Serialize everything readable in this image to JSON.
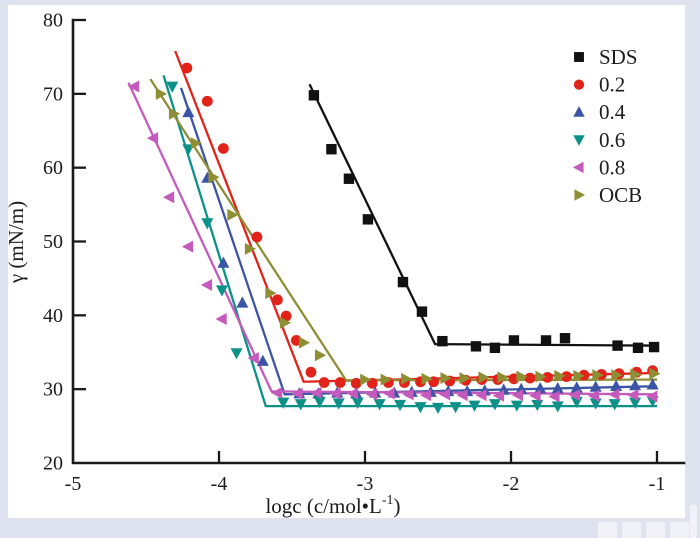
{
  "figure": {
    "frame_color": "#dfe3f0",
    "plot_background": "#ffffff",
    "axis_color": "#1a1a1a",
    "watermark_present": true
  },
  "chart_data": {
    "type": "scatter",
    "title": "",
    "xlabel": {
      "text": "logc (c/mol•L",
      "sup": "-1",
      "suffix": ")"
    },
    "ylabel": "γ (mN/m)",
    "xlim": [
      -5,
      -1
    ],
    "ylim": [
      20,
      80
    ],
    "x_ticks": [
      -5,
      -4,
      -3,
      -2,
      -1
    ],
    "y_ticks": [
      20,
      30,
      40,
      50,
      60,
      70,
      80
    ],
    "grid": false,
    "legend_position": "upper right",
    "series": [
      {
        "name": "SDS",
        "color": "#111111",
        "marker": "square",
        "line": [
          [
            -3.38,
            71.3
          ],
          [
            -2.52,
            36.1
          ],
          [
            -1.0,
            35.9
          ]
        ],
        "points": [
          [
            -3.35,
            69.8
          ],
          [
            -3.23,
            62.5
          ],
          [
            -3.11,
            58.5
          ],
          [
            -2.98,
            53.0
          ],
          [
            -2.74,
            44.5
          ],
          [
            -2.61,
            40.5
          ],
          [
            -2.47,
            36.5
          ],
          [
            -2.24,
            35.8
          ],
          [
            -2.11,
            35.6
          ],
          [
            -1.98,
            36.6
          ],
          [
            -1.76,
            36.6
          ],
          [
            -1.63,
            36.9
          ],
          [
            -1.27,
            35.9
          ],
          [
            -1.13,
            35.6
          ],
          [
            -1.02,
            35.7
          ]
        ]
      },
      {
        "name": "0.2",
        "color": "#e2231a",
        "marker": "circle",
        "line": [
          [
            -4.3,
            75.8
          ],
          [
            -3.42,
            31.0
          ],
          [
            -1.0,
            32.2
          ]
        ],
        "points": [
          [
            -4.22,
            73.5
          ],
          [
            -4.08,
            69.0
          ],
          [
            -3.97,
            62.6
          ],
          [
            -3.74,
            50.6
          ],
          [
            -3.6,
            42.1
          ],
          [
            -3.54,
            39.9
          ],
          [
            -3.47,
            36.6
          ],
          [
            -3.37,
            32.3
          ],
          [
            -3.28,
            30.9
          ],
          [
            -3.17,
            30.9
          ],
          [
            -3.06,
            30.8
          ],
          [
            -2.95,
            30.8
          ],
          [
            -2.84,
            30.9
          ],
          [
            -2.73,
            30.9
          ],
          [
            -2.62,
            31.0
          ],
          [
            -2.53,
            31.0
          ],
          [
            -2.42,
            31.1
          ],
          [
            -2.31,
            31.2
          ],
          [
            -2.2,
            31.3
          ],
          [
            -2.09,
            31.3
          ],
          [
            -1.98,
            31.4
          ],
          [
            -1.87,
            31.5
          ],
          [
            -1.75,
            31.6
          ],
          [
            -1.62,
            31.7
          ],
          [
            -1.5,
            31.9
          ],
          [
            -1.38,
            32.0
          ],
          [
            -1.26,
            32.1
          ],
          [
            -1.14,
            32.3
          ],
          [
            -1.03,
            32.5
          ]
        ]
      },
      {
        "name": "0.4",
        "color": "#3b54a5",
        "marker": "triangle-up",
        "line": [
          [
            -4.26,
            70.8
          ],
          [
            -3.55,
            29.3
          ],
          [
            -1.0,
            30.4
          ]
        ],
        "points": [
          [
            -4.21,
            67.5
          ],
          [
            -4.08,
            58.6
          ],
          [
            -3.97,
            47.1
          ],
          [
            -3.84,
            41.7
          ],
          [
            -3.7,
            33.8
          ],
          [
            -3.45,
            29.4
          ],
          [
            -3.32,
            29.4
          ],
          [
            -3.19,
            29.5
          ],
          [
            -3.06,
            29.4
          ],
          [
            -2.93,
            29.5
          ],
          [
            -2.8,
            29.5
          ],
          [
            -2.68,
            29.6
          ],
          [
            -2.55,
            29.6
          ],
          [
            -2.43,
            29.7
          ],
          [
            -2.3,
            29.7
          ],
          [
            -2.18,
            29.8
          ],
          [
            -2.05,
            29.9
          ],
          [
            -1.93,
            30.0
          ],
          [
            -1.8,
            30.1
          ],
          [
            -1.68,
            30.1
          ],
          [
            -1.55,
            30.2
          ],
          [
            -1.42,
            30.3
          ],
          [
            -1.28,
            30.4
          ],
          [
            -1.15,
            30.5
          ],
          [
            -1.03,
            30.6
          ]
        ]
      },
      {
        "name": "0.6",
        "color": "#0c9189",
        "marker": "triangle-down",
        "line": [
          [
            -4.38,
            72.5
          ],
          [
            -3.68,
            27.7
          ],
          [
            -1.0,
            27.7
          ]
        ],
        "points": [
          [
            -4.32,
            71.0
          ],
          [
            -4.21,
            62.5
          ],
          [
            -4.08,
            52.5
          ],
          [
            -3.98,
            43.4
          ],
          [
            -3.88,
            34.9
          ],
          [
            -3.56,
            28.2
          ],
          [
            -3.44,
            28.0
          ],
          [
            -3.31,
            28.3
          ],
          [
            -3.18,
            28.1
          ],
          [
            -3.05,
            28.2
          ],
          [
            -2.9,
            28.0
          ],
          [
            -2.76,
            27.9
          ],
          [
            -2.62,
            27.6
          ],
          [
            -2.5,
            27.5
          ],
          [
            -2.38,
            27.6
          ],
          [
            -2.25,
            27.8
          ],
          [
            -2.11,
            28.0
          ],
          [
            -1.96,
            27.8
          ],
          [
            -1.82,
            27.9
          ],
          [
            -1.68,
            27.7
          ],
          [
            -1.55,
            28.3
          ],
          [
            -1.42,
            28.1
          ],
          [
            -1.29,
            28.0
          ],
          [
            -1.15,
            28.2
          ],
          [
            -1.03,
            28.4
          ]
        ]
      },
      {
        "name": "0.8",
        "color": "#c45bbc",
        "marker": "triangle-left",
        "line": [
          [
            -4.62,
            71.5
          ],
          [
            -3.64,
            29.7
          ],
          [
            -1.0,
            29.3
          ]
        ],
        "points": [
          [
            -4.58,
            71.0
          ],
          [
            -4.45,
            64.0
          ],
          [
            -4.34,
            56.0
          ],
          [
            -4.21,
            49.3
          ],
          [
            -4.08,
            44.1
          ],
          [
            -3.98,
            39.5
          ],
          [
            -3.76,
            34.2
          ],
          [
            -3.6,
            29.5
          ],
          [
            -3.46,
            29.4
          ],
          [
            -3.33,
            29.5
          ],
          [
            -3.2,
            29.4
          ],
          [
            -3.08,
            29.4
          ],
          [
            -2.95,
            29.3
          ],
          [
            -2.83,
            29.4
          ],
          [
            -2.7,
            29.3
          ],
          [
            -2.58,
            29.2
          ],
          [
            -2.45,
            29.3
          ],
          [
            -2.33,
            29.2
          ],
          [
            -2.2,
            29.2
          ],
          [
            -2.08,
            29.1
          ],
          [
            -1.95,
            29.2
          ],
          [
            -1.83,
            29.1
          ],
          [
            -1.7,
            29.0
          ],
          [
            -1.56,
            29.2
          ],
          [
            -1.43,
            29.1
          ],
          [
            -1.29,
            29.3
          ],
          [
            -1.16,
            29.2
          ],
          [
            -1.03,
            29.0
          ]
        ]
      },
      {
        "name": "OCB",
        "color": "#8e8f35",
        "marker": "triangle-right",
        "line": [
          [
            -4.47,
            72.0
          ],
          [
            -3.13,
            31.2
          ],
          [
            -1.0,
            31.3
          ]
        ],
        "points": [
          [
            -4.4,
            70.0
          ],
          [
            -4.31,
            67.3
          ],
          [
            -4.16,
            63.3
          ],
          [
            -4.04,
            58.7
          ],
          [
            -3.91,
            53.6
          ],
          [
            -3.79,
            49.0
          ],
          [
            -3.65,
            43.0
          ],
          [
            -3.55,
            39.0
          ],
          [
            -3.42,
            36.3
          ],
          [
            -3.31,
            34.6
          ],
          [
            -3.0,
            31.3
          ],
          [
            -2.86,
            31.3
          ],
          [
            -2.72,
            31.4
          ],
          [
            -2.58,
            31.4
          ],
          [
            -2.45,
            31.5
          ],
          [
            -2.32,
            31.5
          ],
          [
            -2.19,
            31.6
          ],
          [
            -2.06,
            31.6
          ],
          [
            -1.93,
            31.7
          ],
          [
            -1.8,
            31.7
          ],
          [
            -1.67,
            31.8
          ],
          [
            -1.54,
            31.8
          ],
          [
            -1.41,
            31.9
          ],
          [
            -1.28,
            31.9
          ],
          [
            -1.15,
            32.0
          ],
          [
            -1.02,
            32.1
          ]
        ]
      }
    ]
  }
}
